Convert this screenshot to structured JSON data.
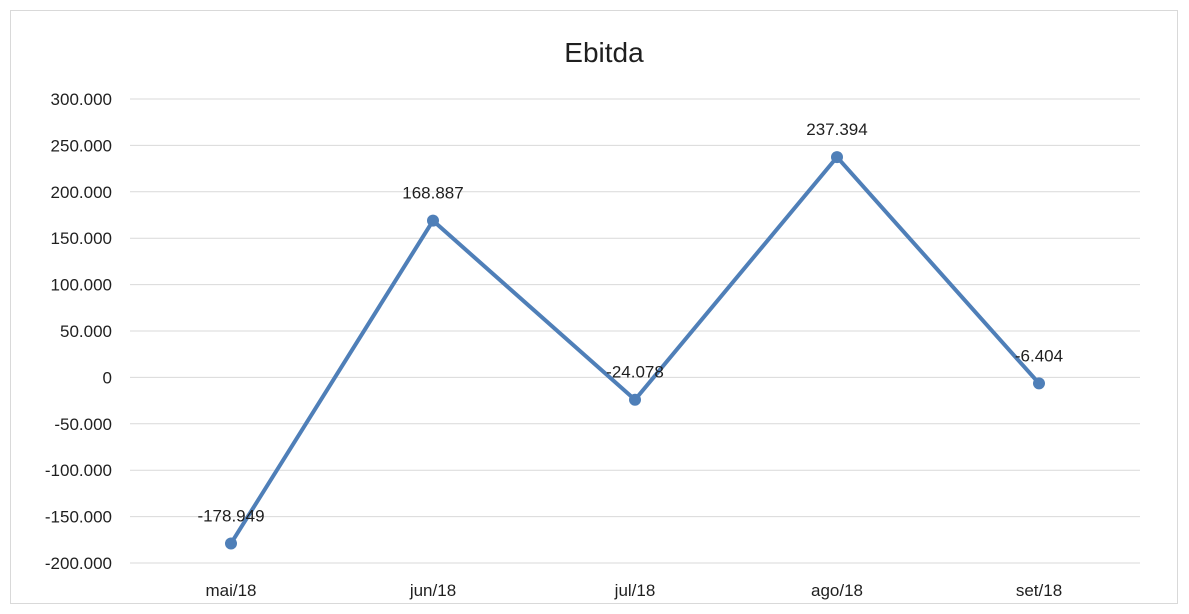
{
  "chart_data": {
    "type": "line",
    "title": "Ebitda",
    "categories": [
      "mai/18",
      "jun/18",
      "jul/18",
      "ago/18",
      "set/18"
    ],
    "series": [
      {
        "values": [
          -178949,
          168887,
          -24078,
          237394,
          -6404
        ],
        "data_labels": [
          "-178.949",
          "168.887",
          "-24.078",
          "237.394",
          "-6.404"
        ],
        "color": "#4f7fb8"
      }
    ],
    "y_ticks": [
      300000,
      250000,
      200000,
      150000,
      100000,
      50000,
      0,
      -50000,
      -100000,
      -150000,
      -200000
    ],
    "y_tick_labels": [
      "300.000",
      "250.000",
      "200.000",
      "150.000",
      "100.000",
      "50.000",
      "0",
      "-50.000",
      "-100.000",
      "-150.000",
      "-200.000"
    ],
    "ylim": [
      -200000,
      300000
    ],
    "grid": true,
    "legend": "none"
  }
}
